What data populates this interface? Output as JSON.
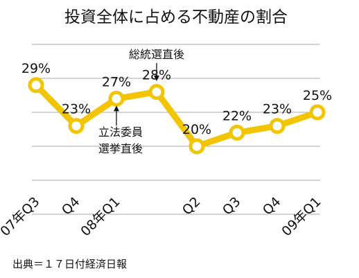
{
  "title": "投資全体に占める不動産の割合",
  "source": "出典＝１７日付経済日報",
  "chart_data": {
    "type": "line",
    "title": "投資全体に占める不動産の割合",
    "categories": [
      "07年Q3",
      "Q4",
      "08年Q1",
      "",
      "Q2",
      "Q3",
      "Q4",
      "09年Q1"
    ],
    "series": [
      {
        "values": [
          29,
          23,
          27,
          28,
          20,
          22,
          23,
          25
        ]
      }
    ],
    "data_labels": [
      "29%",
      "23%",
      "27%",
      "28%",
      "20%",
      "22%",
      "23%",
      "25%"
    ],
    "ylim": [
      10,
      35
    ],
    "grid": true,
    "legend": "none",
    "line_color": "#f2c500",
    "marker_fill": "#ffffff",
    "grid_color": "#aaaaaa",
    "annotations": [
      {
        "text_lines": [
          "総統選直後"
        ],
        "at_index": 3,
        "side": "above"
      },
      {
        "text_lines": [
          "立法委員",
          "選挙直後"
        ],
        "at_index": 2,
        "side": "below"
      }
    ]
  }
}
